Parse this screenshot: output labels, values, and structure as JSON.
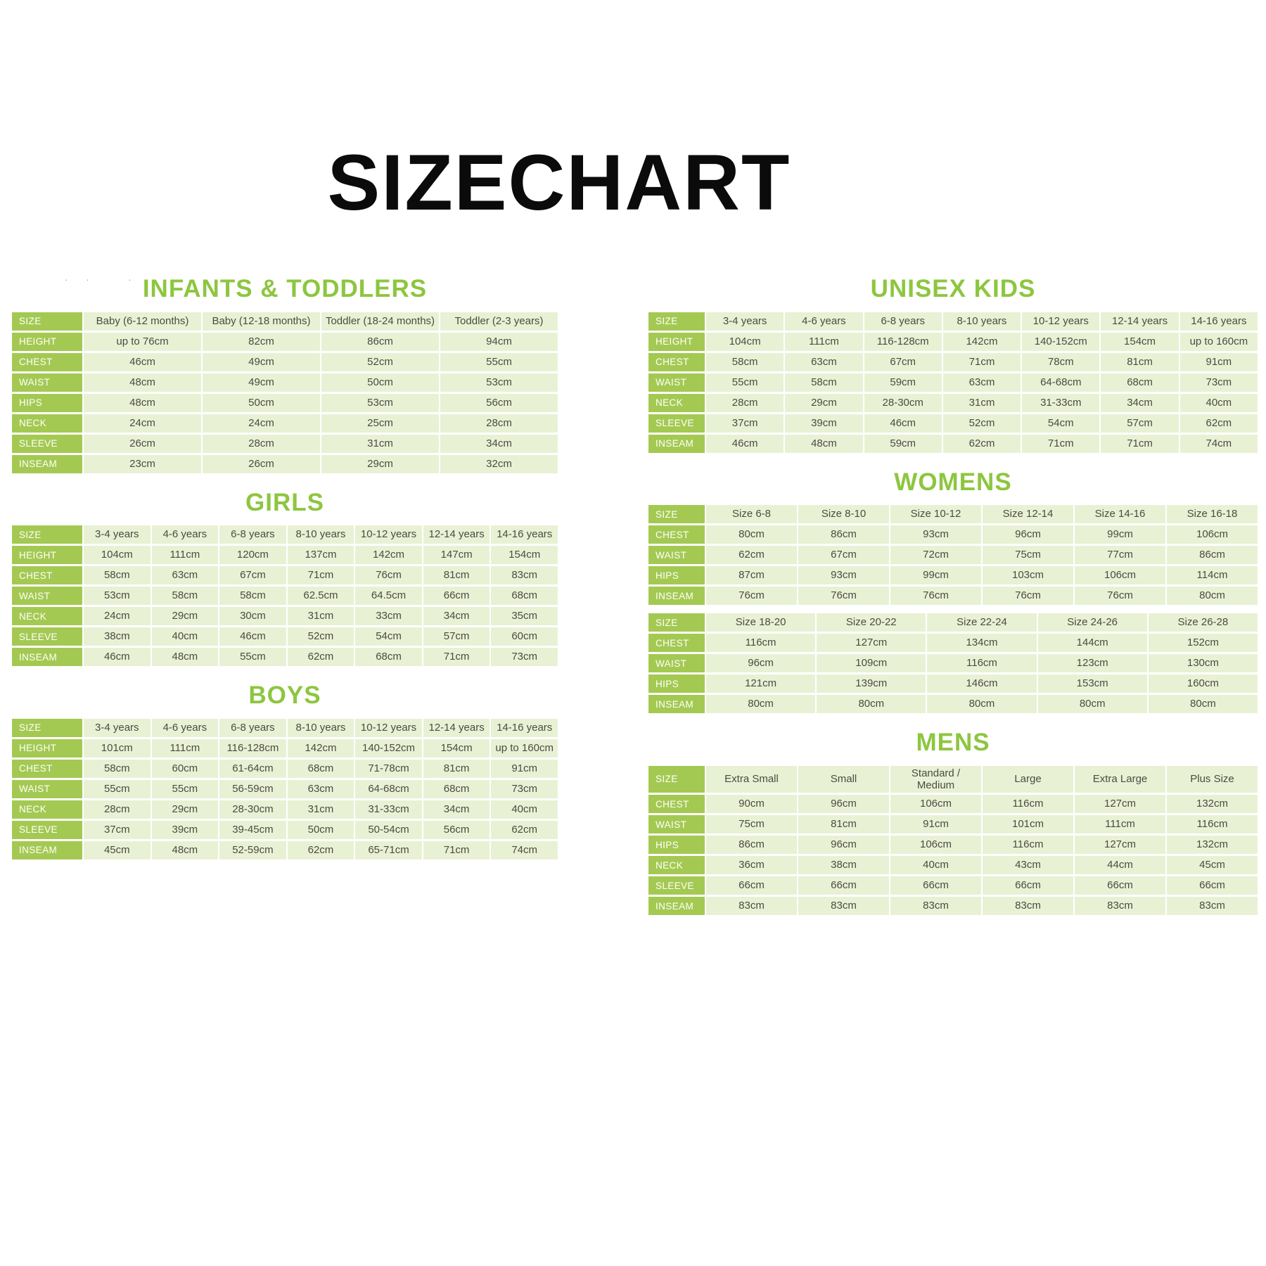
{
  "page_title": "SIZECHART",
  "artifact_marks": "·· ·",
  "colors": {
    "label_green": "#a4c952",
    "cell_green": "#e9f1d5",
    "title_green": "#8dc63f",
    "text_dark": "#4b4b41",
    "title_black": "#0b0b0b"
  },
  "columns": {
    "left": [
      {
        "id": "infants-toddlers",
        "title": "INFANTS & TODDLERS",
        "label_col_width": 100,
        "tables": [
          {
            "size_label": "SIZE",
            "columns": [
              "Baby (6-12 months)",
              "Baby (12-18 months)",
              "Toddler (18-24 months)",
              "Toddler (2-3 years)"
            ],
            "rows": [
              {
                "label": "HEIGHT",
                "values": [
                  "up to 76cm",
                  "82cm",
                  "86cm",
                  "94cm"
                ]
              },
              {
                "label": "CHEST",
                "values": [
                  "46cm",
                  "49cm",
                  "52cm",
                  "55cm"
                ]
              },
              {
                "label": "WAIST",
                "values": [
                  "48cm",
                  "49cm",
                  "50cm",
                  "53cm"
                ]
              },
              {
                "label": "HIPS",
                "values": [
                  "48cm",
                  "50cm",
                  "53cm",
                  "56cm"
                ]
              },
              {
                "label": "NECK",
                "values": [
                  "24cm",
                  "24cm",
                  "25cm",
                  "28cm"
                ]
              },
              {
                "label": "SLEEVE",
                "values": [
                  "26cm",
                  "28cm",
                  "31cm",
                  "34cm"
                ]
              },
              {
                "label": "INSEAM",
                "values": [
                  "23cm",
                  "26cm",
                  "29cm",
                  "32cm"
                ]
              }
            ]
          }
        ]
      },
      {
        "id": "girls",
        "title": "GIRLS",
        "label_col_width": 100,
        "tables": [
          {
            "size_label": "SIZE",
            "columns": [
              "3-4 years",
              "4-6 years",
              "6-8 years",
              "8-10 years",
              "10-12 years",
              "12-14 years",
              "14-16 years"
            ],
            "rows": [
              {
                "label": "HEIGHT",
                "values": [
                  "104cm",
                  "111cm",
                  "120cm",
                  "137cm",
                  "142cm",
                  "147cm",
                  "154cm"
                ]
              },
              {
                "label": "CHEST",
                "values": [
                  "58cm",
                  "63cm",
                  "67cm",
                  "71cm",
                  "76cm",
                  "81cm",
                  "83cm"
                ]
              },
              {
                "label": "WAIST",
                "values": [
                  "53cm",
                  "58cm",
                  "58cm",
                  "62.5cm",
                  "64.5cm",
                  "66cm",
                  "68cm"
                ]
              },
              {
                "label": "NECK",
                "values": [
                  "24cm",
                  "29cm",
                  "30cm",
                  "31cm",
                  "33cm",
                  "34cm",
                  "35cm"
                ]
              },
              {
                "label": "SLEEVE",
                "values": [
                  "38cm",
                  "40cm",
                  "46cm",
                  "52cm",
                  "54cm",
                  "57cm",
                  "60cm"
                ]
              },
              {
                "label": "INSEAM",
                "values": [
                  "46cm",
                  "48cm",
                  "55cm",
                  "62cm",
                  "68cm",
                  "71cm",
                  "73cm"
                ]
              }
            ]
          }
        ]
      },
      {
        "id": "boys",
        "title": "BOYS",
        "label_col_width": 100,
        "tables": [
          {
            "size_label": "SIZE",
            "columns": [
              "3-4 years",
              "4-6 years",
              "6-8 years",
              "8-10 years",
              "10-12 years",
              "12-14 years",
              "14-16 years"
            ],
            "rows": [
              {
                "label": "HEIGHT",
                "values": [
                  "101cm",
                  "111cm",
                  "116-128cm",
                  "142cm",
                  "140-152cm",
                  "154cm",
                  "up to 160cm"
                ]
              },
              {
                "label": "CHEST",
                "values": [
                  "58cm",
                  "60cm",
                  "61-64cm",
                  "68cm",
                  "71-78cm",
                  "81cm",
                  "91cm"
                ]
              },
              {
                "label": "WAIST",
                "values": [
                  "55cm",
                  "55cm",
                  "56-59cm",
                  "63cm",
                  "64-68cm",
                  "68cm",
                  "73cm"
                ]
              },
              {
                "label": "NECK",
                "values": [
                  "28cm",
                  "29cm",
                  "28-30cm",
                  "31cm",
                  "31-33cm",
                  "34cm",
                  "40cm"
                ]
              },
              {
                "label": "SLEEVE",
                "values": [
                  "37cm",
                  "39cm",
                  "39-45cm",
                  "50cm",
                  "50-54cm",
                  "56cm",
                  "62cm"
                ]
              },
              {
                "label": "INSEAM",
                "values": [
                  "45cm",
                  "48cm",
                  "52-59cm",
                  "62cm",
                  "65-71cm",
                  "71cm",
                  "74cm"
                ]
              }
            ]
          }
        ]
      }
    ],
    "right": [
      {
        "id": "unisex-kids",
        "title": "UNISEX KIDS",
        "label_col_width": 80,
        "tables": [
          {
            "size_label": "SIZE",
            "columns": [
              "3-4 years",
              "4-6 years",
              "6-8 years",
              "8-10 years",
              "10-12 years",
              "12-14 years",
              "14-16 years"
            ],
            "rows": [
              {
                "label": "HEIGHT",
                "values": [
                  "104cm",
                  "111cm",
                  "116-128cm",
                  "142cm",
                  "140-152cm",
                  "154cm",
                  "up to 160cm"
                ]
              },
              {
                "label": "CHEST",
                "values": [
                  "58cm",
                  "63cm",
                  "67cm",
                  "71cm",
                  "78cm",
                  "81cm",
                  "91cm"
                ]
              },
              {
                "label": "WAIST",
                "values": [
                  "55cm",
                  "58cm",
                  "59cm",
                  "63cm",
                  "64-68cm",
                  "68cm",
                  "73cm"
                ]
              },
              {
                "label": "NECK",
                "values": [
                  "28cm",
                  "29cm",
                  "28-30cm",
                  "31cm",
                  "31-33cm",
                  "34cm",
                  "40cm"
                ]
              },
              {
                "label": "SLEEVE",
                "values": [
                  "37cm",
                  "39cm",
                  "46cm",
                  "52cm",
                  "54cm",
                  "57cm",
                  "62cm"
                ]
              },
              {
                "label": "INSEAM",
                "values": [
                  "46cm",
                  "48cm",
                  "59cm",
                  "62cm",
                  "71cm",
                  "71cm",
                  "74cm"
                ]
              }
            ]
          }
        ]
      },
      {
        "id": "womens",
        "title": "WOMENS",
        "label_col_width": 80,
        "tables": [
          {
            "size_label": "SIZE",
            "columns": [
              "Size 6-8",
              "Size 8-10",
              "Size 10-12",
              "Size 12-14",
              "Size 14-16",
              "Size 16-18"
            ],
            "rows": [
              {
                "label": "CHEST",
                "values": [
                  "80cm",
                  "86cm",
                  "93cm",
                  "96cm",
                  "99cm",
                  "106cm"
                ]
              },
              {
                "label": "WAIST",
                "values": [
                  "62cm",
                  "67cm",
                  "72cm",
                  "75cm",
                  "77cm",
                  "86cm"
                ]
              },
              {
                "label": "HIPS",
                "values": [
                  "87cm",
                  "93cm",
                  "99cm",
                  "103cm",
                  "106cm",
                  "114cm"
                ]
              },
              {
                "label": "INSEAM",
                "values": [
                  "76cm",
                  "76cm",
                  "76cm",
                  "76cm",
                  "76cm",
                  "80cm"
                ]
              }
            ]
          },
          {
            "size_label": "SIZE",
            "columns": [
              "Size 18-20",
              "Size 20-22",
              "Size 22-24",
              "Size 24-26",
              "Size 26-28"
            ],
            "rows": [
              {
                "label": "CHEST",
                "values": [
                  "116cm",
                  "127cm",
                  "134cm",
                  "144cm",
                  "152cm"
                ]
              },
              {
                "label": "WAIST",
                "values": [
                  "96cm",
                  "109cm",
                  "116cm",
                  "123cm",
                  "130cm"
                ]
              },
              {
                "label": "HIPS",
                "values": [
                  "121cm",
                  "139cm",
                  "146cm",
                  "153cm",
                  "160cm"
                ]
              },
              {
                "label": "INSEAM",
                "values": [
                  "80cm",
                  "80cm",
                  "80cm",
                  "80cm",
                  "80cm"
                ]
              }
            ]
          }
        ]
      },
      {
        "id": "mens",
        "title": "MENS",
        "label_col_width": 80,
        "tables": [
          {
            "size_label": "SIZE",
            "columns": [
              "Extra Small",
              "Small",
              "Standard / Medium",
              "Large",
              "Extra Large",
              "Plus Size"
            ],
            "rows": [
              {
                "label": "CHEST",
                "values": [
                  "90cm",
                  "96cm",
                  "106cm",
                  "116cm",
                  "127cm",
                  "132cm"
                ]
              },
              {
                "label": "WAIST",
                "values": [
                  "75cm",
                  "81cm",
                  "91cm",
                  "101cm",
                  "111cm",
                  "116cm"
                ]
              },
              {
                "label": "HIPS",
                "values": [
                  "86cm",
                  "96cm",
                  "106cm",
                  "116cm",
                  "127cm",
                  "132cm"
                ]
              },
              {
                "label": "NECK",
                "values": [
                  "36cm",
                  "38cm",
                  "40cm",
                  "43cm",
                  "44cm",
                  "45cm"
                ]
              },
              {
                "label": "SLEEVE",
                "values": [
                  "66cm",
                  "66cm",
                  "66cm",
                  "66cm",
                  "66cm",
                  "66cm"
                ]
              },
              {
                "label": "INSEAM",
                "values": [
                  "83cm",
                  "83cm",
                  "83cm",
                  "83cm",
                  "83cm",
                  "83cm"
                ]
              }
            ]
          }
        ]
      }
    ]
  }
}
